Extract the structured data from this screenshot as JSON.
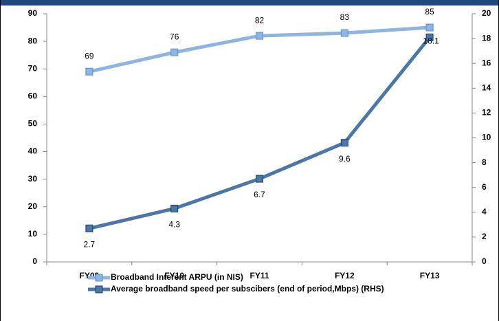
{
  "chart_data": {
    "type": "line",
    "categories": [
      "FY09",
      "FY10",
      "FY11",
      "FY12",
      "FY13"
    ],
    "series": [
      {
        "name": "Broadband Interent ARPU (in NIS)",
        "color": "#8db4e2",
        "values": [
          69,
          76,
          82,
          83,
          85
        ]
      },
      {
        "name": "Average broadband speed per subscibers (end of period,Mbps) (RHS)",
        "color": "#4a76a8",
        "values": [
          2.7,
          4.3,
          6.7,
          9.6,
          18.1
        ],
        "axis": "y2"
      }
    ],
    "ylim": [
      0,
      90
    ],
    "yticks": [
      0,
      10,
      20,
      30,
      40,
      50,
      60,
      70,
      80,
      90
    ],
    "y2lim": [
      0,
      20
    ],
    "y2ticks": [
      0,
      2,
      4,
      6,
      8,
      10,
      12,
      14,
      16,
      18,
      20
    ],
    "grid": false,
    "legend": "bottom"
  }
}
